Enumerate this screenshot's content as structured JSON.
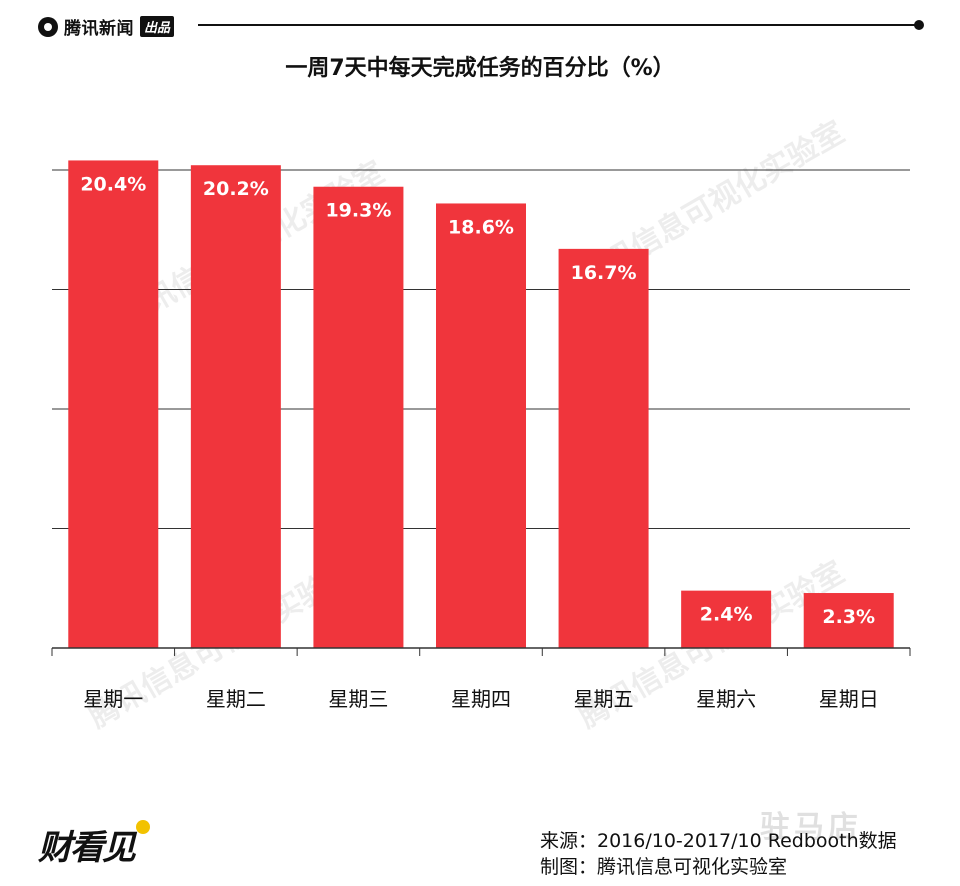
{
  "header": {
    "brand_name": "腾讯新闻",
    "brand_tag": "出品"
  },
  "watermark": "腾讯信息可视化实验室",
  "footer": {
    "logo_text": "财看见",
    "source": "来源：2016/10-2017/10 Redbooth数据",
    "credit": "制图：腾讯信息可视化实验室",
    "corner_mark": "驻马店"
  },
  "colors": {
    "bar": "#f0353c",
    "grid": "#333333",
    "label": "#ffffff",
    "axis_text": "#111111"
  },
  "chart_data": {
    "type": "bar",
    "title": "一周7天中每天完成任务的百分比（%）",
    "xlabel": "",
    "ylabel": "",
    "categories": [
      "星期一",
      "星期二",
      "星期三",
      "星期四",
      "星期五",
      "星期六",
      "星期日"
    ],
    "values": [
      20.4,
      20.2,
      19.3,
      18.6,
      16.7,
      2.4,
      2.3
    ],
    "data_labels": [
      "20.4%",
      "20.2%",
      "19.3%",
      "18.6%",
      "16.7%",
      "2.4%",
      "2.3%"
    ],
    "ylim": [
      0,
      20
    ],
    "grid": true,
    "legend": "none"
  }
}
